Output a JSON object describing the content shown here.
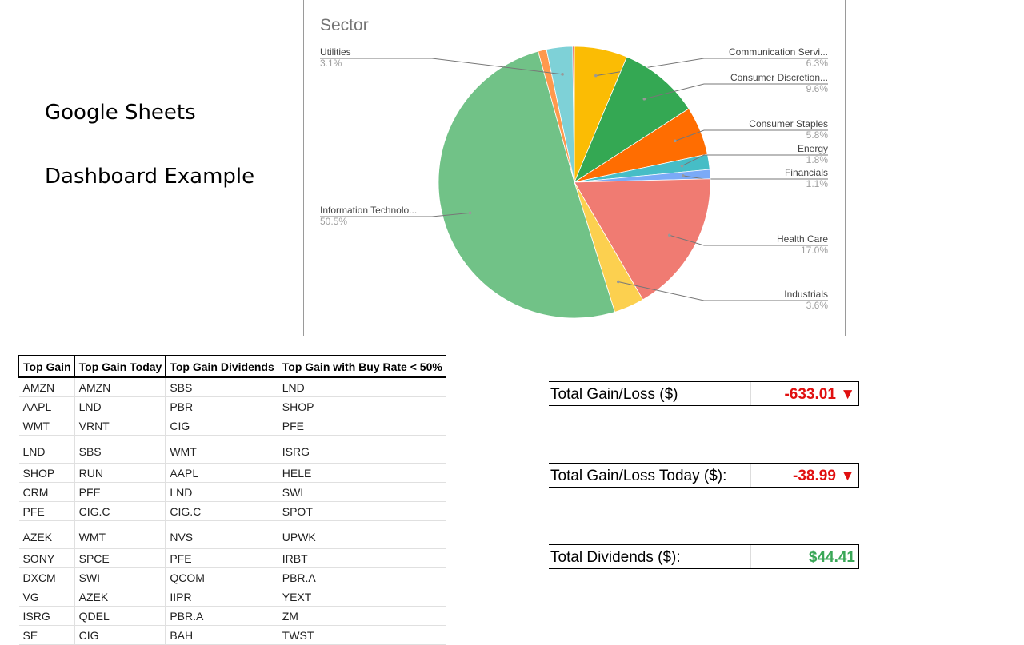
{
  "intro": {
    "line1": "Google Sheets",
    "line2": "Dashboard Example"
  },
  "chart_data": {
    "type": "pie",
    "title": "Sector",
    "slices": [
      {
        "label": "Communication Servi...",
        "value": 6.3,
        "pct_label": "6.3%",
        "color": "#fbbc04"
      },
      {
        "label": "Consumer Discretion...",
        "value": 9.6,
        "pct_label": "9.6%",
        "color": "#34a853"
      },
      {
        "label": "Consumer Staples",
        "value": 5.8,
        "pct_label": "5.8%",
        "color": "#ff6d01"
      },
      {
        "label": "Energy",
        "value": 1.8,
        "pct_label": "1.8%",
        "color": "#46bdc6"
      },
      {
        "label": "Financials",
        "value": 1.1,
        "pct_label": "1.1%",
        "color": "#7baaf7"
      },
      {
        "label": "Health Care",
        "value": 17.0,
        "pct_label": "17.0%",
        "color": "#f07b72"
      },
      {
        "label": "Industrials",
        "value": 3.6,
        "pct_label": "3.6%",
        "color": "#fcd04f"
      },
      {
        "label": "Information Technolo...",
        "value": 50.5,
        "pct_label": "50.5%",
        "color": "#71c287"
      },
      {
        "label": "",
        "value": 1.0,
        "pct_label": "",
        "color": "#ff994d"
      },
      {
        "label": "Utilities",
        "value": 3.1,
        "pct_label": "3.1%",
        "color": "#7ed1d7"
      },
      {
        "label": "",
        "value": 0.2,
        "pct_label": "",
        "color": "#e8453c"
      }
    ],
    "legend": "labels with leader lines"
  },
  "table": {
    "headers": [
      "Top Gain",
      "Top Gain Today",
      "Top Gain Dividends",
      "Top Gain with Buy Rate < 50%"
    ],
    "rows": [
      [
        "AMZN",
        "AMZN",
        "SBS",
        "LND"
      ],
      [
        "AAPL",
        "LND",
        "PBR",
        "SHOP"
      ],
      [
        "WMT",
        "VRNT",
        "CIG",
        "PFE"
      ],
      [
        "LND",
        "SBS",
        "WMT",
        "ISRG"
      ],
      [
        "SHOP",
        "RUN",
        "AAPL",
        "HELE"
      ],
      [
        "CRM",
        "PFE",
        "LND",
        "SWI"
      ],
      [
        "PFE",
        "CIG.C",
        "CIG.C",
        "SPOT"
      ],
      [
        "AZEK",
        "WMT",
        "NVS",
        "UPWK"
      ],
      [
        "SONY",
        "SPCE",
        "PFE",
        "IRBT"
      ],
      [
        "DXCM",
        "SWI",
        "QCOM",
        "PBR.A"
      ],
      [
        "VG",
        "AZEK",
        "IIPR",
        "YEXT"
      ],
      [
        "ISRG",
        "QDEL",
        "PBR.A",
        "ZM"
      ],
      [
        "SE",
        "CIG",
        "BAH",
        "TWST"
      ]
    ]
  },
  "summary": [
    {
      "label": "Total Gain/Loss ($)",
      "value": "-633.01 ▼",
      "trend": "down",
      "color": "#e01010"
    },
    {
      "label": "Total Gain/Loss Today ($):",
      "value": "-38.99 ▼",
      "trend": "down",
      "color": "#e01010"
    },
    {
      "label": "Total Dividends ($):",
      "value": "$44.41",
      "trend": "up",
      "color": "#3aa757"
    }
  ]
}
